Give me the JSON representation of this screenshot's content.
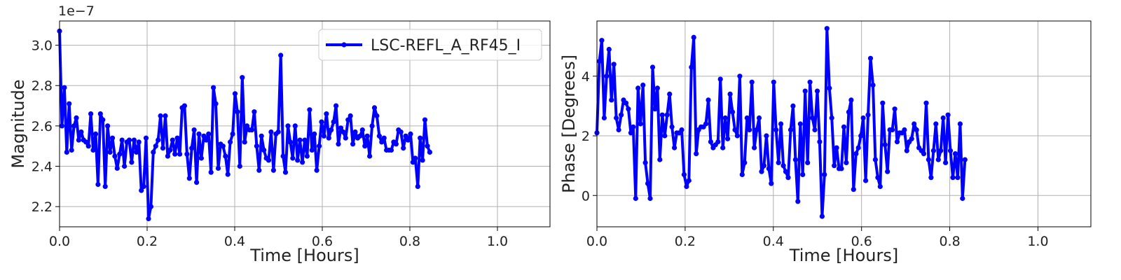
{
  "chart_data": [
    {
      "type": "line",
      "xlabel": "Time [Hours]",
      "ylabel": "Magnitude",
      "offset_text": "1e−7",
      "xlim": [
        0,
        1.12
      ],
      "ylim": [
        2.1,
        3.12
      ],
      "xticks": [
        0.0,
        0.2,
        0.4,
        0.6,
        0.8,
        1.0
      ],
      "xtick_labels": [
        "0.0",
        "0.2",
        "0.4",
        "0.6",
        "0.8",
        "1.0"
      ],
      "yticks": [
        2.2,
        2.4,
        2.6,
        2.8,
        3.0
      ],
      "ytick_labels": [
        "2.2",
        "2.4",
        "2.6",
        "2.8",
        "3.0"
      ],
      "grid": true,
      "legend_position": "top-right",
      "series": [
        {
          "name": "LSC-REFL_A_RF45_I",
          "color": "#0000ff",
          "x_start": 0.0,
          "x_step": 0.00549,
          "y": [
            3.07,
            2.6,
            2.79,
            2.47,
            2.71,
            2.48,
            2.6,
            2.64,
            2.53,
            2.57,
            2.53,
            2.52,
            2.5,
            2.66,
            2.48,
            2.56,
            2.31,
            2.66,
            2.63,
            2.3,
            2.6,
            2.47,
            2.54,
            2.45,
            2.39,
            2.46,
            2.53,
            2.4,
            2.52,
            2.53,
            2.42,
            2.53,
            2.47,
            2.52,
            2.28,
            2.3,
            2.54,
            2.14,
            2.2,
            2.47,
            2.5,
            2.53,
            2.65,
            2.49,
            2.65,
            2.45,
            2.48,
            2.53,
            2.46,
            2.54,
            2.46,
            2.69,
            2.7,
            2.46,
            2.34,
            2.49,
            2.58,
            2.32,
            2.56,
            2.44,
            2.55,
            2.53,
            2.56,
            2.37,
            2.79,
            2.71,
            2.39,
            2.51,
            2.5,
            2.45,
            2.36,
            2.52,
            2.56,
            2.76,
            2.67,
            2.4,
            2.84,
            2.52,
            2.6,
            2.58,
            2.58,
            2.67,
            2.5,
            2.38,
            2.55,
            2.48,
            2.44,
            2.43,
            2.57,
            2.38,
            2.56,
            2.57,
            2.95,
            2.45,
            2.37,
            2.6,
            2.52,
            2.44,
            2.6,
            2.43,
            2.53,
            2.42,
            2.53,
            2.45,
            2.68,
            2.48,
            2.56,
            2.38,
            2.5,
            2.62,
            2.55,
            2.66,
            2.54,
            2.58,
            2.62,
            2.7,
            2.51,
            2.59,
            2.57,
            2.54,
            2.63,
            2.65,
            2.51,
            2.57,
            2.54,
            2.55,
            2.58,
            2.5,
            2.55,
            2.45,
            2.6,
            2.69,
            2.65,
            2.55,
            2.52,
            2.54,
            2.48,
            2.48,
            2.48,
            2.52,
            2.51,
            2.58,
            2.57,
            2.49,
            2.55,
            2.53,
            2.56,
            2.42,
            2.44,
            2.3,
            2.54,
            2.43,
            2.63,
            2.5,
            2.47
          ]
        }
      ]
    },
    {
      "type": "line",
      "xlabel": "Time [Hours]",
      "ylabel": "Phase [Degrees]",
      "xlim": [
        0,
        1.12
      ],
      "ylim": [
        -1.05,
        5.85
      ],
      "xticks": [
        0.0,
        0.2,
        0.4,
        0.6,
        0.8,
        1.0
      ],
      "xtick_labels": [
        "0.0",
        "0.2",
        "0.4",
        "0.6",
        "0.8",
        "1.0"
      ],
      "yticks": [
        0,
        2,
        4
      ],
      "ytick_labels": [
        "0",
        "2",
        "4"
      ],
      "grid": true,
      "series": [
        {
          "color": "#0000ff",
          "x_start": 0.0,
          "x_step": 0.00549,
          "y": [
            2.1,
            4.5,
            5.2,
            2.6,
            4.0,
            4.9,
            3.2,
            4.4,
            2.6,
            2.2,
            2.7,
            3.2,
            3.1,
            2.9,
            2.1,
            2.3,
            -0.1,
            3.6,
            2.4,
            3.7,
            1.1,
            0.4,
            -0.1,
            4.3,
            2.9,
            3.6,
            1.2,
            2.7,
            2.0,
            2.7,
            3.4,
            2.3,
            1.6,
            2.1,
            2.1,
            2.2,
            0.7,
            0.3,
            0.5,
            4.3,
            5.3,
            1.4,
            2.2,
            2.3,
            2.3,
            2.4,
            3.2,
            1.8,
            1.6,
            1.7,
            1.8,
            3.9,
            1.6,
            2.6,
            1.9,
            3.4,
            2.8,
            2.2,
            2.0,
            4.0,
            0.7,
            1.1,
            2.6,
            2.2,
            3.8,
            1.6,
            2.2,
            2.6,
            0.8,
            1.0,
            2.0,
            0.9,
            0.4,
            3.8,
            2.2,
            1.1,
            2.4,
            1.0,
            0.8,
            0.6,
            2.2,
            3.0,
            1.2,
            -0.2,
            2.4,
            0.7,
            3.5,
            1.1,
            3.8,
            2.6,
            2.2,
            3.5,
            1.8,
            -0.7,
            0.7,
            5.6,
            3.6,
            2.6,
            1.0,
            1.6,
            0.9,
            0.9,
            2.3,
            1.1,
            2.8,
            3.2,
            0.2,
            1.4,
            1.6,
            2.0,
            2.6,
            0.5,
            2.7,
            4.6,
            3.7,
            1.2,
            0.6,
            0.3,
            3.1,
            1.7,
            0.8,
            2.2,
            2.2,
            2.9,
            1.8,
            2.1,
            2.1,
            2.2,
            1.5,
            1.8,
            1.9,
            2.4,
            2.2,
            1.6,
            1.5,
            1.4,
            3.1,
            1.2,
            0.6,
            1.5,
            2.4,
            1.2,
            1.5,
            2.6,
            1.1,
            2.7,
            1.5,
            0.6,
            1.4,
            0.6,
            2.4,
            -0.1,
            1.2
          ]
        }
      ]
    }
  ]
}
